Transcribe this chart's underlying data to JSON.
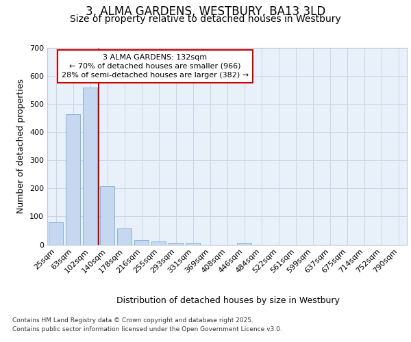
{
  "title_line1": "3, ALMA GARDENS, WESTBURY, BA13 3LD",
  "title_line2": "Size of property relative to detached houses in Westbury",
  "xlabel": "Distribution of detached houses by size in Westbury",
  "ylabel": "Number of detached properties",
  "categories": [
    "25sqm",
    "63sqm",
    "102sqm",
    "140sqm",
    "178sqm",
    "216sqm",
    "255sqm",
    "293sqm",
    "331sqm",
    "369sqm",
    "408sqm",
    "446sqm",
    "484sqm",
    "522sqm",
    "561sqm",
    "599sqm",
    "637sqm",
    "675sqm",
    "714sqm",
    "752sqm",
    "790sqm"
  ],
  "values": [
    80,
    465,
    560,
    207,
    57,
    15,
    10,
    7,
    7,
    0,
    0,
    7,
    0,
    0,
    0,
    0,
    0,
    0,
    0,
    0,
    0
  ],
  "bar_color": "#c5d8f0",
  "bar_edge_color": "#7bacd4",
  "grid_color": "#c8d4e8",
  "background_color": "#ffffff",
  "plot_bg_color": "#e8f0fa",
  "annotation_text": "3 ALMA GARDENS: 132sqm\n← 70% of detached houses are smaller (966)\n28% of semi-detached houses are larger (382) →",
  "annotation_box_color": "#cc0000",
  "vertical_line_x": 3,
  "ylim": [
    0,
    700
  ],
  "yticks": [
    0,
    100,
    200,
    300,
    400,
    500,
    600,
    700
  ],
  "footer_line1": "Contains HM Land Registry data © Crown copyright and database right 2025.",
  "footer_line2": "Contains public sector information licensed under the Open Government Licence v3.0.",
  "title_fontsize": 12,
  "subtitle_fontsize": 10,
  "axis_label_fontsize": 9,
  "tick_fontsize": 8,
  "annotation_fontsize": 8,
  "footer_fontsize": 6.5
}
